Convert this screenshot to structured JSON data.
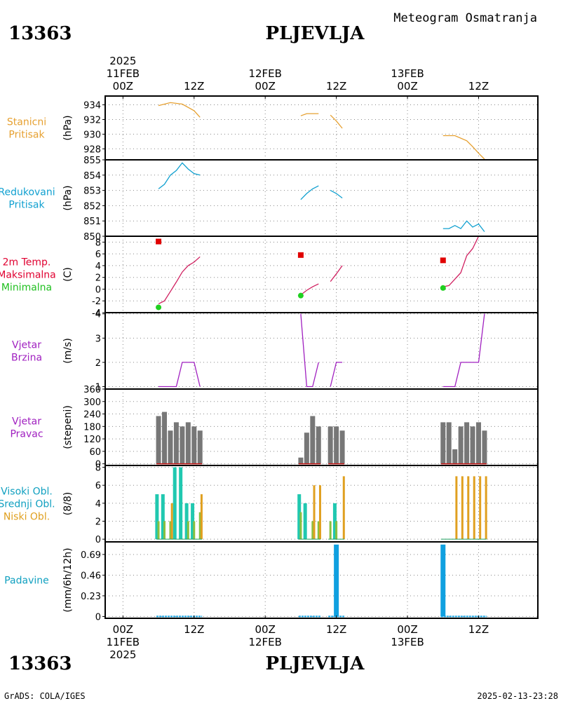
{
  "header": {
    "station_id": "13363",
    "station_name": "PLJEVLJA",
    "product_title": "Meteogram Osmatranja"
  },
  "footer": {
    "station_id": "13363",
    "station_name": "PLJEVLJA",
    "credit": "GrADS: COLA/IGES",
    "timestamp": "2025-02-13-23:28"
  },
  "time_axis": {
    "year": "2025",
    "dates": [
      "11FEB",
      "12FEB",
      "13FEB"
    ],
    "top_ticks": [
      {
        "t": 0,
        "label": "00Z"
      },
      {
        "t": 12,
        "label": "12Z"
      },
      {
        "t": 24,
        "label": "00Z"
      },
      {
        "t": 36,
        "label": "12Z"
      },
      {
        "t": 48,
        "label": "00Z"
      },
      {
        "t": 60,
        "label": "12Z"
      }
    ],
    "bottom_ticks": [
      {
        "t": 0,
        "label": "00Z"
      },
      {
        "t": 12,
        "label": "12Z"
      },
      {
        "t": 24,
        "label": "00Z"
      },
      {
        "t": 36,
        "label": "12Z"
      },
      {
        "t": 48,
        "label": "00Z"
      },
      {
        "t": 60,
        "label": "12Z"
      }
    ],
    "range_hours": [
      -3,
      70
    ]
  },
  "chart_data": [
    {
      "type": "line",
      "labels": [
        "Stanicni",
        "Pritisak"
      ],
      "label_color": "#e6a030",
      "ylabel": "(hPa)",
      "ylim": [
        926.5,
        935.2
      ],
      "yticks": [
        928,
        930,
        932,
        934
      ],
      "color": "#e6a030",
      "segments": [
        [
          [
            6,
            933.9
          ],
          [
            8,
            934.3
          ],
          [
            10,
            934.1
          ],
          [
            12,
            933.2
          ],
          [
            13,
            932.3
          ]
        ],
        [
          [
            30,
            932.5
          ],
          [
            31,
            932.8
          ],
          [
            33,
            932.8
          ]
        ],
        [
          [
            35,
            932.6
          ],
          [
            36,
            931.8
          ],
          [
            37,
            930.8
          ]
        ],
        [
          [
            54,
            929.8
          ],
          [
            56,
            929.8
          ],
          [
            58,
            929.1
          ],
          [
            59,
            928.3
          ],
          [
            60,
            927.4
          ],
          [
            61,
            926.6
          ]
        ]
      ]
    },
    {
      "type": "line",
      "labels": [
        "Redukovani",
        "Pritisak"
      ],
      "label_color": "#10a0d0",
      "ylabel": "(hPa)",
      "ylim": [
        850,
        855
      ],
      "yticks": [
        850,
        851,
        852,
        853,
        854,
        855
      ],
      "color": "#10a0d0",
      "segments": [
        [
          [
            6,
            853.1
          ],
          [
            7,
            853.4
          ],
          [
            8,
            854
          ],
          [
            9,
            854.3
          ],
          [
            10,
            854.8
          ],
          [
            11,
            854.4
          ],
          [
            12,
            854.1
          ],
          [
            13,
            854
          ]
        ],
        [
          [
            30,
            852.4
          ],
          [
            31,
            852.8
          ],
          [
            32,
            853.1
          ],
          [
            33,
            853.3
          ]
        ],
        [
          [
            35,
            853
          ],
          [
            36,
            852.8
          ],
          [
            37,
            852.5
          ]
        ],
        [
          [
            54,
            850.5
          ],
          [
            55,
            850.5
          ],
          [
            56,
            850.7
          ],
          [
            57,
            850.5
          ],
          [
            58,
            851
          ],
          [
            59,
            850.6
          ],
          [
            60,
            850.8
          ],
          [
            61,
            850.3
          ]
        ]
      ]
    },
    {
      "type": "line",
      "labels": [
        "2m Temp.",
        "Maksimalna",
        "Minimalna"
      ],
      "label_colors": [
        "#e00030",
        "#e00030",
        "#20c020"
      ],
      "ylabel": "(C)",
      "ylim": [
        -4,
        9
      ],
      "yticks": [
        -4,
        -2,
        0,
        2,
        4,
        6,
        8
      ],
      "color": "#d02060",
      "segments": [
        [
          [
            6,
            -2.5
          ],
          [
            7,
            -2
          ],
          [
            8,
            -0.4
          ],
          [
            9,
            1.2
          ],
          [
            10,
            2.9
          ],
          [
            11,
            4
          ],
          [
            12,
            4.6
          ],
          [
            13,
            5.5
          ]
        ],
        [
          [
            30,
            -1
          ],
          [
            31,
            -0.2
          ],
          [
            32,
            0.4
          ],
          [
            33,
            0.9
          ]
        ],
        [
          [
            35,
            1.3
          ],
          [
            36,
            2.6
          ],
          [
            37,
            4
          ]
        ],
        [
          [
            54,
            0.4
          ],
          [
            55,
            0.6
          ],
          [
            56,
            1.7
          ],
          [
            57,
            2.8
          ],
          [
            58,
            5.7
          ],
          [
            59,
            6.9
          ],
          [
            60,
            9
          ],
          [
            61,
            9
          ]
        ]
      ],
      "maxima": [
        [
          6,
          8.1
        ],
        [
          30,
          5.8
        ],
        [
          54,
          4.9
        ]
      ],
      "maxima_color": "#e00000",
      "minima": [
        [
          6,
          -3.1
        ],
        [
          30,
          -1.1
        ],
        [
          54,
          0.2
        ]
      ],
      "minima_color": "#20d020"
    },
    {
      "type": "line",
      "labels": [
        "Vjetar",
        "Brzina"
      ],
      "label_color": "#a020c0",
      "ylabel": "(m/s)",
      "ylim": [
        0.9,
        4.05
      ],
      "yticks": [
        1,
        2,
        3,
        4
      ],
      "color": "#a020c0",
      "segments": [
        [
          [
            6,
            1
          ],
          [
            9,
            1
          ],
          [
            10,
            2
          ],
          [
            12,
            2
          ],
          [
            13,
            1
          ]
        ],
        [
          [
            30,
            4
          ],
          [
            31,
            1
          ],
          [
            32,
            1
          ],
          [
            33,
            2
          ]
        ],
        [
          [
            35,
            1
          ],
          [
            36,
            2
          ],
          [
            37,
            2
          ]
        ],
        [
          [
            54,
            1
          ],
          [
            56,
            1
          ],
          [
            57,
            2
          ],
          [
            60,
            2
          ],
          [
            61,
            4
          ]
        ]
      ]
    },
    {
      "type": "bar",
      "labels": [
        "Vjetar",
        "Pravac"
      ],
      "label_color": "#a020c0",
      "ylabel": "(stepeni)",
      "ylim": [
        -8,
        360
      ],
      "yticks": [
        0,
        60,
        120,
        180,
        240,
        300,
        360
      ],
      "color": "#777777",
      "baseline_color": "#c01010",
      "bars": [
        [
          6,
          230
        ],
        [
          7,
          250
        ],
        [
          8,
          160
        ],
        [
          9,
          200
        ],
        [
          10,
          180
        ],
        [
          11,
          200
        ],
        [
          12,
          180
        ],
        [
          13,
          160
        ],
        [
          30,
          30
        ],
        [
          31,
          150
        ],
        [
          32,
          230
        ],
        [
          33,
          180
        ],
        [
          35,
          180
        ],
        [
          36,
          180
        ],
        [
          37,
          160
        ],
        [
          54,
          200
        ],
        [
          55,
          200
        ],
        [
          56,
          70
        ],
        [
          57,
          180
        ],
        [
          58,
          200
        ],
        [
          59,
          180
        ],
        [
          60,
          200
        ],
        [
          61,
          160
        ]
      ]
    },
    {
      "type": "bar",
      "labels": [
        "Visoki Obl.",
        "Srednji Obl.",
        "Niski Obl."
      ],
      "label_colors": [
        "#10a0c0",
        "#10a0c0",
        "#e0a020"
      ],
      "ylabel": "(8/8)",
      "ylim": [
        -0.3,
        8.2
      ],
      "yticks": [
        0,
        2,
        4,
        6,
        8
      ],
      "series": [
        {
          "name": "Visoki Obl.",
          "color": "#20c8b0",
          "values": [
            [
              6,
              5
            ],
            [
              7,
              5
            ],
            [
              8,
              0
            ],
            [
              9,
              8
            ],
            [
              10,
              8
            ],
            [
              11,
              4
            ],
            [
              12,
              4
            ],
            [
              13,
              0
            ],
            [
              30,
              5
            ],
            [
              31,
              4
            ],
            [
              32,
              0
            ],
            [
              33,
              0
            ],
            [
              35,
              0
            ],
            [
              36,
              4
            ],
            [
              37,
              0
            ],
            [
              54,
              0
            ],
            [
              55,
              0
            ],
            [
              56,
              0
            ],
            [
              57,
              0
            ],
            [
              58,
              0
            ],
            [
              59,
              0
            ],
            [
              60,
              0
            ],
            [
              61,
              0
            ]
          ]
        },
        {
          "name": "Srednji Obl.",
          "color": "#88c040",
          "values": [
            [
              6,
              2
            ],
            [
              7,
              2
            ],
            [
              8,
              2
            ],
            [
              9,
              0
            ],
            [
              10,
              0
            ],
            [
              11,
              2
            ],
            [
              12,
              2
            ],
            [
              13,
              3
            ],
            [
              30,
              3
            ],
            [
              31,
              0
            ],
            [
              32,
              2
            ],
            [
              33,
              2
            ],
            [
              35,
              2
            ],
            [
              36,
              2
            ],
            [
              37,
              0
            ],
            [
              54,
              0
            ],
            [
              55,
              0
            ],
            [
              56,
              0
            ],
            [
              57,
              0
            ],
            [
              58,
              0
            ],
            [
              59,
              0
            ],
            [
              60,
              0
            ],
            [
              61,
              0
            ]
          ]
        },
        {
          "name": "Niski Obl.",
          "color": "#e0a020",
          "values": [
            [
              6,
              0
            ],
            [
              7,
              0
            ],
            [
              8,
              4
            ],
            [
              9,
              0
            ],
            [
              10,
              0
            ],
            [
              11,
              0
            ],
            [
              12,
              0
            ],
            [
              13,
              5
            ],
            [
              30,
              0
            ],
            [
              31,
              0
            ],
            [
              32,
              6
            ],
            [
              33,
              6
            ],
            [
              35,
              0
            ],
            [
              36,
              0
            ],
            [
              37,
              7
            ],
            [
              54,
              0
            ],
            [
              55,
              0
            ],
            [
              56,
              7
            ],
            [
              57,
              7
            ],
            [
              58,
              7
            ],
            [
              59,
              7
            ],
            [
              60,
              7
            ],
            [
              61,
              7
            ]
          ]
        }
      ]
    },
    {
      "type": "bar",
      "labels": [
        "Padavine"
      ],
      "label_color": "#10a0c0",
      "ylabel": "(mm/6h/12h)",
      "ylim": [
        -0.02,
        0.83
      ],
      "yticks": [
        0,
        0.23,
        0.46,
        0.69
      ],
      "ytick_labels": [
        "0",
        "0.23",
        "0.46",
        "0.69"
      ],
      "color": "#10a0e0",
      "bars": [
        [
          36,
          0.8
        ],
        [
          54,
          0.8
        ]
      ],
      "trace_segments": [
        [
          6,
          13
        ],
        [
          30,
          33
        ],
        [
          35,
          37
        ],
        [
          54,
          61
        ]
      ]
    }
  ]
}
